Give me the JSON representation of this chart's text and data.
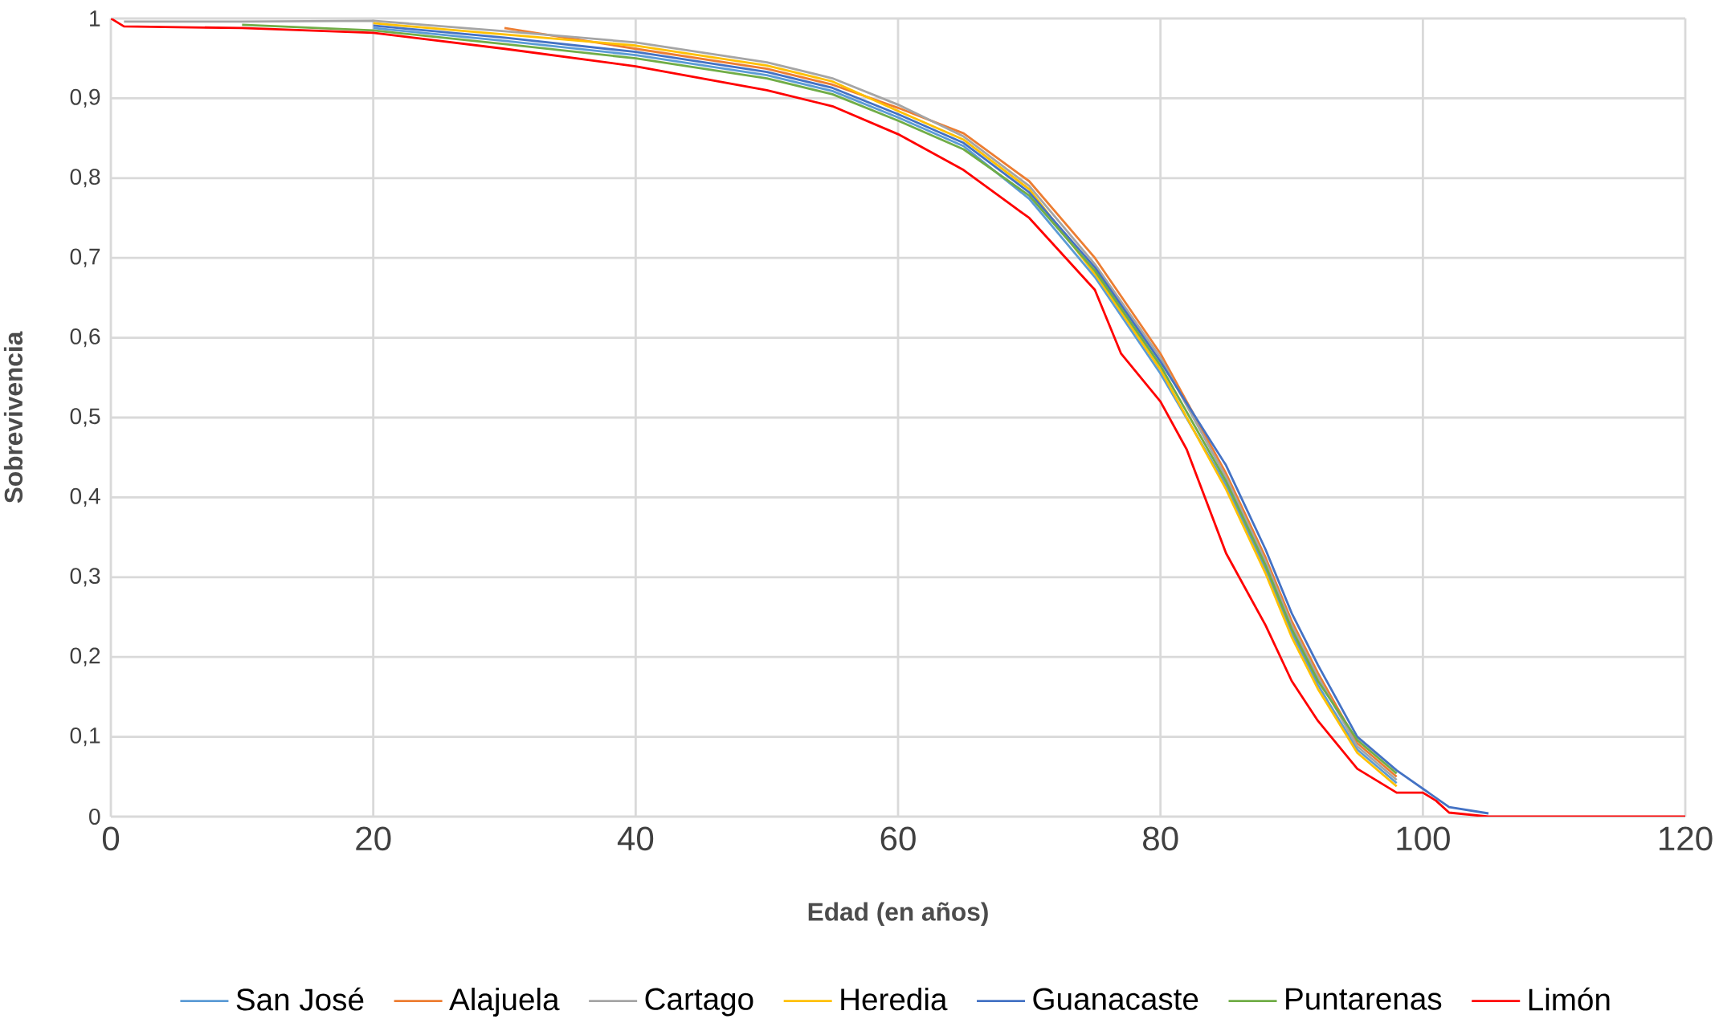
{
  "chart_data": {
    "type": "line",
    "xlabel": "Edad (en años)",
    "ylabel": "Sobrevivencia",
    "xlim": [
      0,
      120
    ],
    "xticks": [
      0,
      20,
      40,
      60,
      80,
      100,
      120
    ],
    "ylim": [
      0,
      1
    ],
    "yticks": [
      {
        "value": 0,
        "label": "0"
      },
      {
        "value": 0.1,
        "label": "0,1"
      },
      {
        "value": 0.2,
        "label": "0,2"
      },
      {
        "value": 0.3,
        "label": "0,3"
      },
      {
        "value": 0.4,
        "label": "0,4"
      },
      {
        "value": 0.5,
        "label": "0,5"
      },
      {
        "value": 0.6,
        "label": "0,6"
      },
      {
        "value": 0.7,
        "label": "0,7"
      },
      {
        "value": 0.8,
        "label": "0,8"
      },
      {
        "value": 0.9,
        "label": "0,9"
      },
      {
        "value": 1,
        "label": "1"
      }
    ],
    "grid": true,
    "legend": "bottom",
    "marker": "none",
    "line_style": "solid",
    "series": [
      {
        "name": "San José",
        "color": "#5b9bd5",
        "x": [
          20,
          30,
          40,
          50,
          55,
          60,
          65,
          70,
          75,
          80,
          85,
          88,
          90,
          92,
          95,
          98
        ],
        "values": [
          0.988,
          0.972,
          0.954,
          0.929,
          0.909,
          0.876,
          0.84,
          0.774,
          0.676,
          0.555,
          0.415,
          0.31,
          0.23,
          0.165,
          0.084,
          0.042
        ]
      },
      {
        "name": "Alajuela",
        "color": "#ed7d31",
        "x": [
          30,
          40,
          50,
          55,
          60,
          65,
          70,
          75,
          80,
          85,
          88,
          90,
          92,
          95,
          98
        ],
        "values": [
          0.988,
          0.962,
          0.937,
          0.917,
          0.888,
          0.856,
          0.796,
          0.7,
          0.58,
          0.43,
          0.325,
          0.245,
          0.18,
          0.092,
          0.05
        ]
      },
      {
        "name": "Cartago",
        "color": "#a5a5a5",
        "x": [
          1,
          10,
          20,
          30,
          40,
          50,
          55,
          60,
          65,
          70,
          75,
          80,
          85,
          88,
          90,
          92,
          95,
          98
        ],
        "values": [
          0.996,
          0.996,
          0.997,
          0.984,
          0.97,
          0.945,
          0.925,
          0.892,
          0.852,
          0.79,
          0.692,
          0.575,
          0.425,
          0.32,
          0.24,
          0.175,
          0.088,
          0.046
        ]
      },
      {
        "name": "Heredia",
        "color": "#ffc000",
        "x": [
          20,
          30,
          40,
          50,
          55,
          60,
          65,
          70,
          75,
          80,
          85,
          88,
          90,
          92,
          95,
          98
        ],
        "values": [
          0.994,
          0.98,
          0.966,
          0.941,
          0.921,
          0.884,
          0.848,
          0.786,
          0.68,
          0.56,
          0.41,
          0.305,
          0.225,
          0.16,
          0.08,
          0.038
        ]
      },
      {
        "name": "Guanacaste",
        "color": "#4472c4",
        "x": [
          20,
          30,
          40,
          50,
          55,
          60,
          65,
          70,
          75,
          80,
          85,
          88,
          90,
          92,
          95,
          98,
          102,
          105
        ],
        "values": [
          0.991,
          0.976,
          0.958,
          0.933,
          0.913,
          0.88,
          0.844,
          0.782,
          0.688,
          0.57,
          0.44,
          0.335,
          0.255,
          0.19,
          0.1,
          0.058,
          0.012,
          0.004
        ]
      },
      {
        "name": "Puntarenas",
        "color": "#70ad47",
        "x": [
          10,
          20,
          30,
          40,
          50,
          55,
          60,
          65,
          70,
          75,
          80,
          85,
          88,
          90,
          92,
          95,
          98
        ],
        "values": [
          0.992,
          0.985,
          0.968,
          0.95,
          0.925,
          0.905,
          0.872,
          0.836,
          0.778,
          0.684,
          0.565,
          0.42,
          0.315,
          0.235,
          0.17,
          0.096,
          0.054
        ]
      },
      {
        "name": "Limón",
        "color": "#ff0000",
        "x": [
          0,
          1,
          10,
          20,
          30,
          40,
          50,
          55,
          60,
          65,
          70,
          75,
          77,
          80,
          82,
          85,
          88,
          90,
          92,
          95,
          98,
          100,
          101,
          102,
          105,
          110,
          120
        ],
        "values": [
          1,
          0.99,
          0.988,
          0.982,
          0.962,
          0.94,
          0.91,
          0.89,
          0.855,
          0.81,
          0.75,
          0.66,
          0.58,
          0.52,
          0.46,
          0.33,
          0.24,
          0.17,
          0.12,
          0.06,
          0.03,
          0.03,
          0.02,
          0.005,
          0,
          0,
          0
        ]
      }
    ]
  }
}
